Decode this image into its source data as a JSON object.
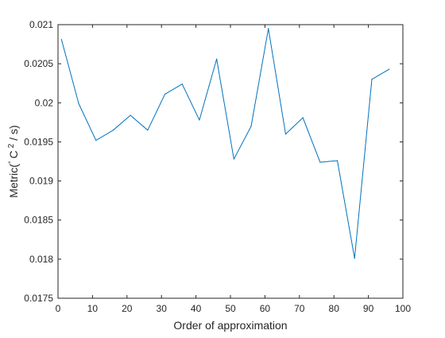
{
  "chart_data": {
    "type": "line",
    "title": "",
    "xlabel": "Order of approximation",
    "ylabel": {
      "prefix": "Metric(",
      "sup1": "°",
      "mid": "C",
      "sup2": "2",
      "suffix": " / s)"
    },
    "xlim": [
      0,
      100
    ],
    "ylim": [
      0.0175,
      0.021
    ],
    "x_ticks": [
      0,
      10,
      20,
      30,
      40,
      50,
      60,
      70,
      80,
      90,
      100
    ],
    "y_ticks": [
      0.0175,
      0.018,
      0.0185,
      0.019,
      0.0195,
      0.02,
      0.0205,
      0.021
    ],
    "y_tick_labels": [
      "0.0175",
      "0.018",
      "0.0185",
      "0.019",
      "0.0195",
      "0.02",
      "0.0205",
      "0.021"
    ],
    "grid": false,
    "series": [
      {
        "color": "#0072BD",
        "x": [
          1,
          6,
          11,
          16,
          21,
          26,
          31,
          36,
          41,
          46,
          51,
          56,
          61,
          66,
          71,
          76,
          81,
          86,
          91,
          96
        ],
        "y": [
          0.02081,
          0.01999,
          0.01952,
          0.01965,
          0.01984,
          0.01965,
          0.02011,
          0.02024,
          0.01978,
          0.02056,
          0.01928,
          0.0197,
          0.02095,
          0.0196,
          0.01981,
          0.01924,
          0.01926,
          0.01801,
          0.0203,
          0.02043
        ]
      }
    ]
  }
}
